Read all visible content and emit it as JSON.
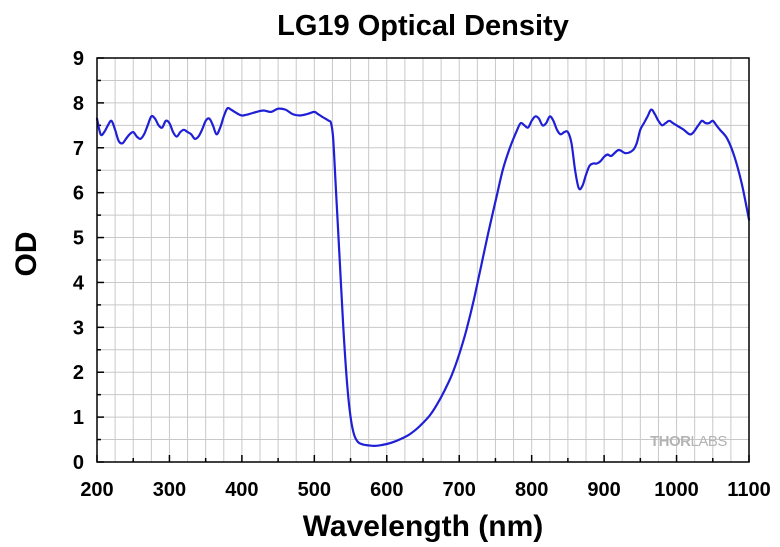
{
  "chart_data": {
    "type": "line",
    "title": "LG19 Optical Density",
    "xlabel": "Wavelength (nm)",
    "ylabel": "OD",
    "xlim": [
      200,
      1100
    ],
    "ylim": [
      0,
      9
    ],
    "x_ticks": [
      "200",
      "300",
      "400",
      "500",
      "600",
      "700",
      "800",
      "900",
      "1000",
      "1100"
    ],
    "y_ticks": [
      "0",
      "1",
      "2",
      "3",
      "4",
      "5",
      "6",
      "7",
      "8",
      "9"
    ],
    "grid": true,
    "legend": "none",
    "line_color": "#1f1fd6",
    "watermark": {
      "parts": [
        "THOR",
        "LABS"
      ]
    },
    "series": [
      {
        "x": [
          200,
          205,
          210,
          215,
          220,
          225,
          230,
          235,
          240,
          245,
          250,
          255,
          260,
          265,
          270,
          275,
          280,
          285,
          290,
          295,
          300,
          305,
          310,
          315,
          320,
          325,
          330,
          335,
          340,
          345,
          350,
          355,
          360,
          365,
          370,
          375,
          380,
          385,
          390,
          395,
          400,
          410,
          420,
          430,
          440,
          450,
          460,
          470,
          480,
          490,
          500,
          505,
          510,
          515,
          520,
          523,
          526,
          530,
          535,
          540,
          545,
          550,
          555,
          560,
          565,
          570,
          575,
          580,
          585,
          590,
          600,
          610,
          620,
          630,
          640,
          650,
          660,
          670,
          680,
          690,
          700,
          710,
          720,
          730,
          740,
          750,
          760,
          770,
          780,
          785,
          790,
          795,
          800,
          805,
          810,
          815,
          820,
          825,
          830,
          835,
          840,
          845,
          850,
          855,
          860,
          865,
          870,
          875,
          880,
          885,
          890,
          895,
          900,
          905,
          910,
          920,
          930,
          940,
          945,
          950,
          955,
          960,
          965,
          970,
          975,
          980,
          985,
          990,
          995,
          1000,
          1010,
          1020,
          1030,
          1035,
          1040,
          1045,
          1050,
          1055,
          1060,
          1070,
          1080,
          1090,
          1100
        ],
        "y": [
          7.65,
          7.3,
          7.35,
          7.5,
          7.6,
          7.4,
          7.15,
          7.1,
          7.2,
          7.3,
          7.35,
          7.25,
          7.2,
          7.3,
          7.5,
          7.7,
          7.65,
          7.5,
          7.45,
          7.6,
          7.55,
          7.35,
          7.25,
          7.35,
          7.4,
          7.35,
          7.3,
          7.2,
          7.25,
          7.4,
          7.6,
          7.65,
          7.5,
          7.3,
          7.45,
          7.7,
          7.88,
          7.85,
          7.8,
          7.75,
          7.72,
          7.75,
          7.8,
          7.83,
          7.8,
          7.87,
          7.85,
          7.75,
          7.72,
          7.75,
          7.8,
          7.75,
          7.7,
          7.65,
          7.6,
          7.55,
          7.2,
          6.0,
          4.5,
          3.0,
          1.8,
          1.0,
          0.6,
          0.45,
          0.4,
          0.38,
          0.37,
          0.36,
          0.36,
          0.37,
          0.4,
          0.45,
          0.52,
          0.6,
          0.72,
          0.87,
          1.05,
          1.3,
          1.6,
          1.95,
          2.4,
          2.95,
          3.6,
          4.35,
          5.1,
          5.8,
          6.5,
          7.0,
          7.4,
          7.55,
          7.5,
          7.45,
          7.6,
          7.7,
          7.65,
          7.5,
          7.55,
          7.7,
          7.6,
          7.4,
          7.3,
          7.35,
          7.35,
          7.1,
          6.5,
          6.1,
          6.15,
          6.4,
          6.6,
          6.65,
          6.65,
          6.7,
          6.8,
          6.85,
          6.82,
          6.95,
          6.88,
          6.95,
          7.1,
          7.4,
          7.55,
          7.7,
          7.85,
          7.75,
          7.6,
          7.5,
          7.55,
          7.6,
          7.55,
          7.5,
          7.4,
          7.3,
          7.5,
          7.6,
          7.55,
          7.55,
          7.6,
          7.5,
          7.4,
          7.2,
          6.8,
          6.2,
          5.4
        ]
      }
    ]
  }
}
